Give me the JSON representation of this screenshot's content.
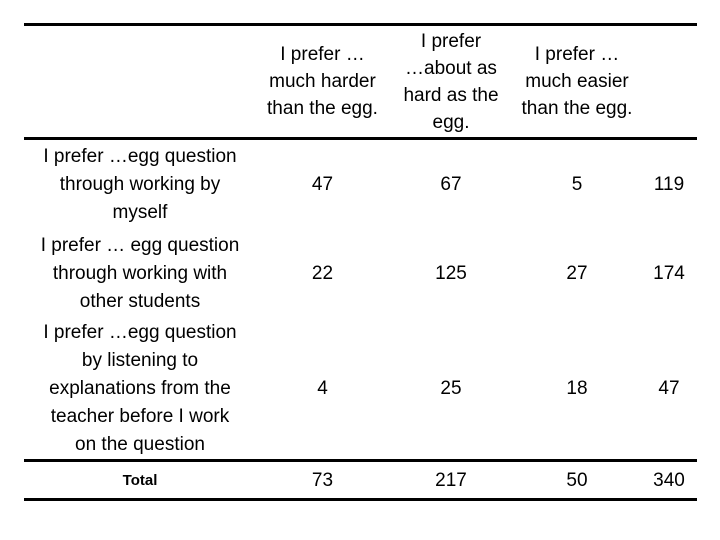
{
  "table": {
    "headers": {
      "row_label": "",
      "col1": "I prefer …\nmuch harder\nthan the egg.",
      "col2": "I prefer\n…about as\nhard as the\negg.",
      "col3": "I prefer …\nmuch easier\nthan the egg.",
      "col4": ""
    },
    "rows": [
      {
        "label": "I prefer …egg question\nthrough working by\nmyself",
        "values": [
          "47",
          "67",
          "5",
          "119"
        ]
      },
      {
        "label": "I prefer … egg question\nthrough working with\nother students",
        "values": [
          "22",
          "125",
          "27",
          "174"
        ]
      },
      {
        "label": "I prefer …egg question\nby listening to\nexplanations from the\nteacher before I work\non the question",
        "values": [
          "4",
          "25",
          "18",
          "47"
        ]
      }
    ],
    "total": {
      "label": "Total",
      "values": [
        "73",
        "217",
        "50",
        "340"
      ]
    }
  },
  "colors": {
    "background": "#ffffff",
    "text": "#000000",
    "rule": "#000000"
  },
  "chart_data": {
    "type": "table",
    "title": "",
    "columns": [
      "",
      "I prefer … much harder than the egg.",
      "I prefer …about as hard as the egg.",
      "I prefer … much easier than the egg.",
      ""
    ],
    "rows": [
      {
        "label": "I prefer …egg question through working by myself",
        "values": [
          47,
          67,
          5,
          119
        ]
      },
      {
        "label": "I prefer … egg question through working with other students",
        "values": [
          22,
          125,
          27,
          174
        ]
      },
      {
        "label": "I prefer …egg question by listening to explanations from the teacher before I work on the question",
        "values": [
          4,
          25,
          18,
          47
        ]
      },
      {
        "label": "Total",
        "values": [
          73,
          217,
          50,
          340
        ]
      }
    ]
  }
}
